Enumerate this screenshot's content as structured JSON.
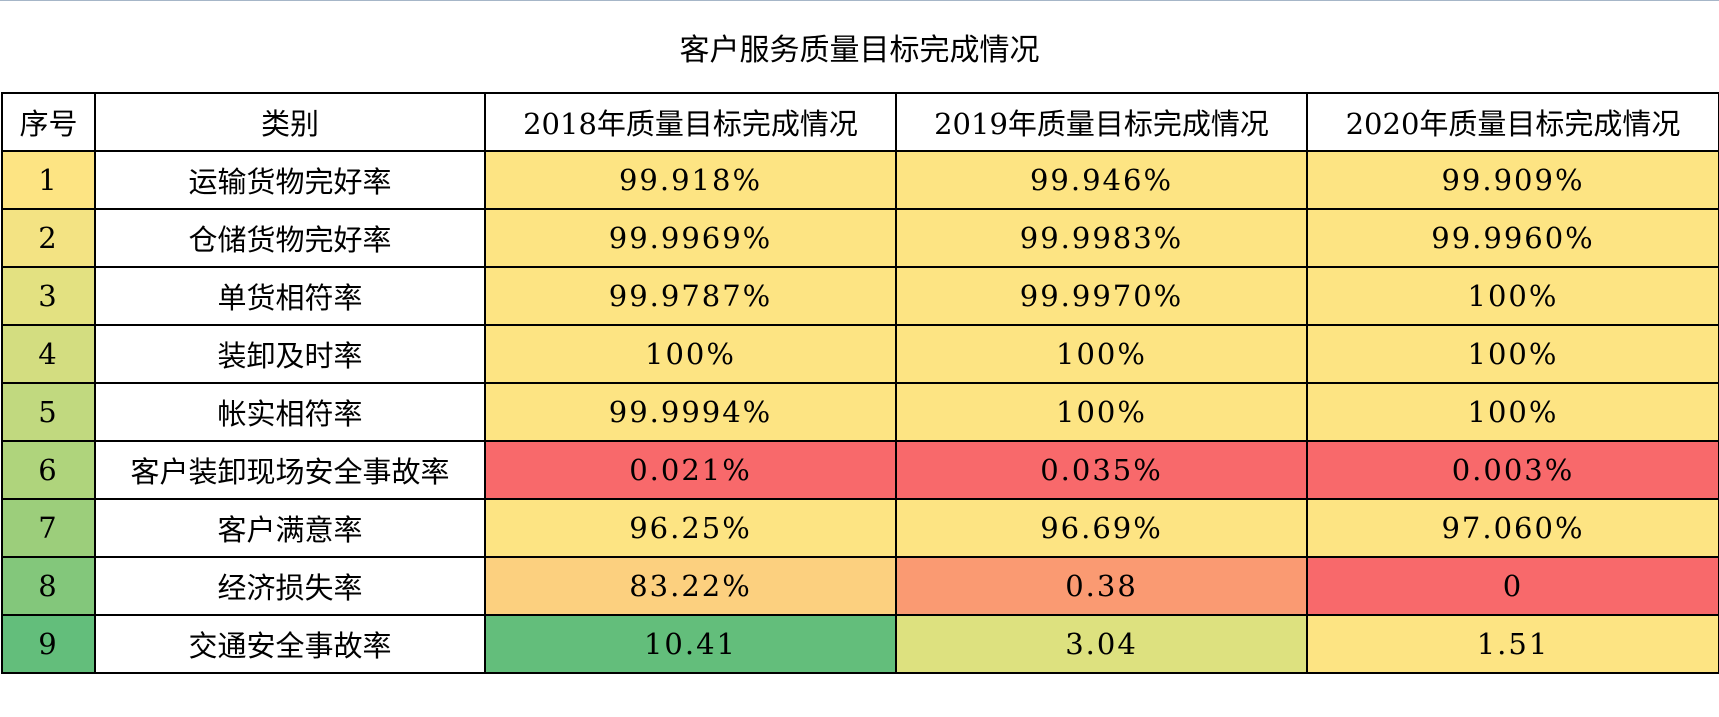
{
  "title": "客户服务质量目标完成情况",
  "headers": {
    "num": "序号",
    "category": "类别",
    "y2018": "2018年质量目标完成情况",
    "y2019": "2019年质量目标完成情况",
    "y2020": "2020年质量目标完成情况"
  },
  "rows": [
    {
      "num": "1",
      "category": "运输货物完好率",
      "y2018": "99.918%",
      "y2019": "99.946%",
      "y2020": "99.909%",
      "colors": {
        "num": "#fde483",
        "y2018": "#fde483",
        "y2019": "#fde483",
        "y2020": "#fde483"
      }
    },
    {
      "num": "2",
      "category": "仓储货物完好率",
      "y2018": "99.9969%",
      "y2019": "99.9983%",
      "y2020": "99.9960%",
      "colors": {
        "num": "#f3e383",
        "y2018": "#fde483",
        "y2019": "#fde483",
        "y2020": "#fde483"
      }
    },
    {
      "num": "3",
      "category": "单货相符率",
      "y2018": "99.9787%",
      "y2019": "99.9970%",
      "y2020": "100%",
      "colors": {
        "num": "#e3e181",
        "y2018": "#fde483",
        "y2019": "#fde483",
        "y2020": "#fde483"
      }
    },
    {
      "num": "4",
      "category": "装卸及时率",
      "y2018": "100%",
      "y2019": "100%",
      "y2020": "100%",
      "colors": {
        "num": "#d3dd80",
        "y2018": "#fde483",
        "y2019": "#fde483",
        "y2020": "#fde483"
      }
    },
    {
      "num": "5",
      "category": "帐实相符率",
      "y2018": "99.9994%",
      "y2019": "100%",
      "y2020": "100%",
      "colors": {
        "num": "#c1d97f",
        "y2018": "#fde483",
        "y2019": "#fde483",
        "y2020": "#fde483"
      }
    },
    {
      "num": "6",
      "category": "客户装卸现场安全事故率",
      "y2018": "0.021%",
      "y2019": "0.035%",
      "y2020": "0.003%",
      "colors": {
        "num": "#afd47c",
        "y2018": "#f8696b",
        "y2019": "#f8696b",
        "y2020": "#f8696b"
      }
    },
    {
      "num": "7",
      "category": "客户满意率",
      "y2018": "96.25%",
      "y2019": "96.69%",
      "y2020": "97.060%",
      "colors": {
        "num": "#9cce7b",
        "y2018": "#fde483",
        "y2019": "#fde483",
        "y2020": "#fde483"
      }
    },
    {
      "num": "8",
      "category": "经济损失率",
      "y2018": "83.22%",
      "y2019": "0.38",
      "y2020": "0",
      "colors": {
        "num": "#83c77b",
        "y2018": "#fcd07f",
        "y2019": "#fa9a72",
        "y2020": "#f8696b"
      }
    },
    {
      "num": "9",
      "category": "交通安全事故率",
      "y2018": "10.41",
      "y2019": "3.04",
      "y2020": "1.51",
      "colors": {
        "num": "#63be7b",
        "y2018": "#63be7b",
        "y2019": "#dde17f",
        "y2020": "#fde483"
      }
    }
  ]
}
